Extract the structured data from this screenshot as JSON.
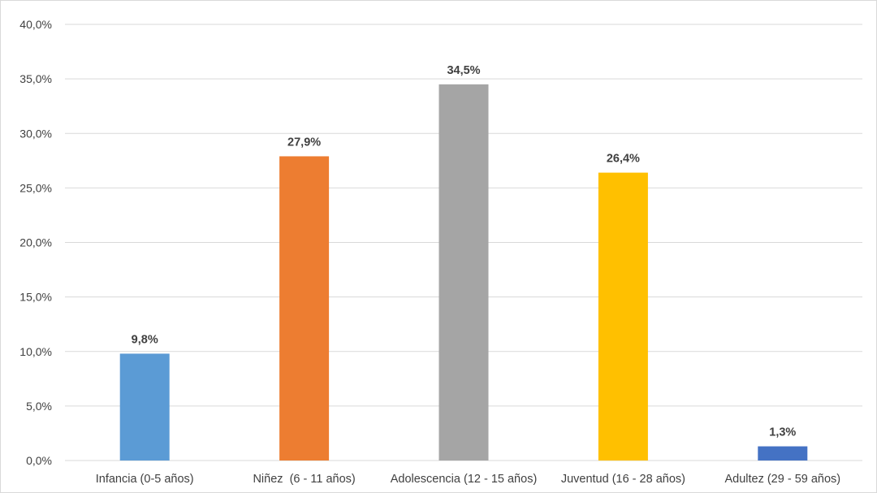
{
  "chart_data": {
    "type": "bar",
    "title": "",
    "xlabel": "",
    "ylabel": "",
    "categories": [
      "Infancia (0-5 años)",
      "Niñez  (6 - 11 años)",
      "Adolescencia (12 - 15 años)",
      "Juventud (16 - 28 años)",
      "Adultez (29 - 59 años)"
    ],
    "values": [
      9.8,
      27.9,
      34.5,
      26.4,
      1.3
    ],
    "data_labels": [
      "9,8%",
      "27,9%",
      "34,5%",
      "26,4%",
      "1,3%"
    ],
    "colors": [
      "#5b9bd5",
      "#ed7d31",
      "#a5a5a5",
      "#ffc000",
      "#4472c4"
    ],
    "ylim": [
      0,
      40
    ],
    "yticks": [
      0,
      5,
      10,
      15,
      20,
      25,
      30,
      35,
      40
    ],
    "ytick_labels": [
      "0,0%",
      "5,0%",
      "10,0%",
      "15,0%",
      "20,0%",
      "25,0%",
      "30,0%",
      "35,0%",
      "40,0%"
    ],
    "grid": true,
    "legend": "none",
    "gridline_color": "#d9d9d9"
  }
}
